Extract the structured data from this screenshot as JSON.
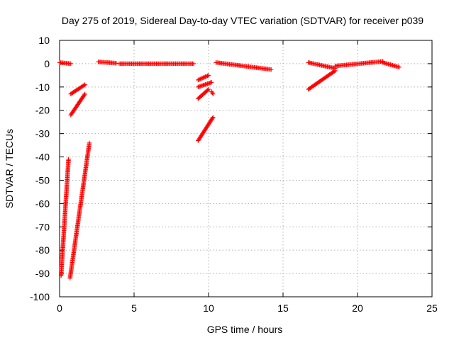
{
  "chart_data": {
    "type": "scatter",
    "title": "Day 275 of 2019, Sidereal Day-to-day VTEC variation (SDTVAR) for receiver p039",
    "xlabel": "GPS time / hours",
    "ylabel": "SDTVAR / TECUs",
    "xlim": [
      0,
      25
    ],
    "ylim": [
      -100,
      10
    ],
    "xticks": [
      "0",
      "5",
      "10",
      "15",
      "20",
      "25"
    ],
    "yticks": [
      "10",
      "0",
      "-10",
      "-20",
      "-30",
      "-40",
      "-50",
      "-60",
      "-70",
      "-80",
      "-90",
      "-100"
    ],
    "grid": true,
    "marker": "+",
    "color": "#ff0000",
    "segments": [
      {
        "name": "arc-0h-top",
        "x_start": 0.0,
        "x_end": 0.75,
        "y_start": 0.5,
        "y_end": 0.0
      },
      {
        "name": "arc-0.1h-deep",
        "x_start": 0.1,
        "x_end": 0.6,
        "y_start": -91,
        "y_end": -41
      },
      {
        "name": "arc-0.7h-deep",
        "x_start": 0.7,
        "x_end": 2.0,
        "y_start": -92,
        "y_end": -34
      },
      {
        "name": "arc-0.75h-mid",
        "x_start": 0.75,
        "x_end": 1.7,
        "y_start": -22,
        "y_end": -13
      },
      {
        "name": "arc-0.75h-upper",
        "x_start": 0.75,
        "x_end": 1.7,
        "y_start": -13,
        "y_end": -9
      },
      {
        "name": "arc-2.6h-top",
        "x_start": 2.6,
        "x_end": 3.8,
        "y_start": 0.8,
        "y_end": 0.2
      },
      {
        "name": "arc-4h-top",
        "x_start": 4.0,
        "x_end": 9.0,
        "y_start": 0.0,
        "y_end": 0.0
      },
      {
        "name": "arc-9.3h-a",
        "x_start": 9.3,
        "x_end": 10.0,
        "y_start": -7,
        "y_end": -5
      },
      {
        "name": "arc-9.3h-b",
        "x_start": 9.3,
        "x_end": 10.2,
        "y_start": -10,
        "y_end": -8
      },
      {
        "name": "arc-9.3h-c",
        "x_start": 9.3,
        "x_end": 10.0,
        "y_start": -15,
        "y_end": -11
      },
      {
        "name": "arc-9.3h-d",
        "x_start": 9.3,
        "x_end": 10.3,
        "y_start": -33,
        "y_end": -23
      },
      {
        "name": "arc-10.3h-e",
        "x_start": 10.2,
        "x_end": 10.3,
        "y_start": -12,
        "y_end": -13
      },
      {
        "name": "arc-10.5h-top",
        "x_start": 10.5,
        "x_end": 14.2,
        "y_start": 0.5,
        "y_end": -2.5
      },
      {
        "name": "arc-16.7h-rise",
        "x_start": 16.7,
        "x_end": 18.5,
        "y_start": -11,
        "y_end": -3
      },
      {
        "name": "arc-16.7h-hook",
        "x_start": 16.7,
        "x_end": 18.5,
        "y_start": 0.5,
        "y_end": -2
      },
      {
        "name": "arc-18.5h-top",
        "x_start": 18.5,
        "x_end": 21.7,
        "y_start": -1,
        "y_end": 1
      },
      {
        "name": "arc-21.7h-top",
        "x_start": 21.7,
        "x_end": 22.8,
        "y_start": 0.5,
        "y_end": -1.5
      }
    ]
  }
}
